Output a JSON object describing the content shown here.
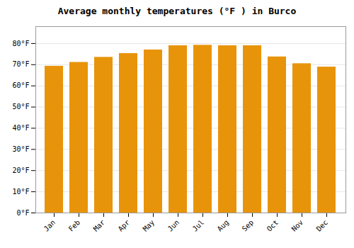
{
  "chart_data": {
    "type": "bar",
    "title": "Average monthly temperatures (°F ) in Burco",
    "categories": [
      "Jan",
      "Feb",
      "Mar",
      "Apr",
      "May",
      "Jun",
      "Jul",
      "Aug",
      "Sep",
      "Oct",
      "Nov",
      "Dec"
    ],
    "values": [
      69.3,
      71.1,
      73.5,
      75.3,
      77.0,
      79.0,
      79.2,
      79.0,
      79.0,
      73.7,
      70.5,
      68.9
    ],
    "color": "#E8940A",
    "ylim": [
      0,
      88
    ],
    "yticks": [
      {
        "value": 0,
        "label": "0°F"
      },
      {
        "value": 10,
        "label": "10°F"
      },
      {
        "value": 20,
        "label": "20°F"
      },
      {
        "value": 30,
        "label": "30°F"
      },
      {
        "value": 40,
        "label": "40°F"
      },
      {
        "value": 50,
        "label": "50°F"
      },
      {
        "value": 60,
        "label": "60°F"
      },
      {
        "value": 70,
        "label": "70°F"
      },
      {
        "value": 80,
        "label": "80°F"
      }
    ],
    "grid": true
  }
}
